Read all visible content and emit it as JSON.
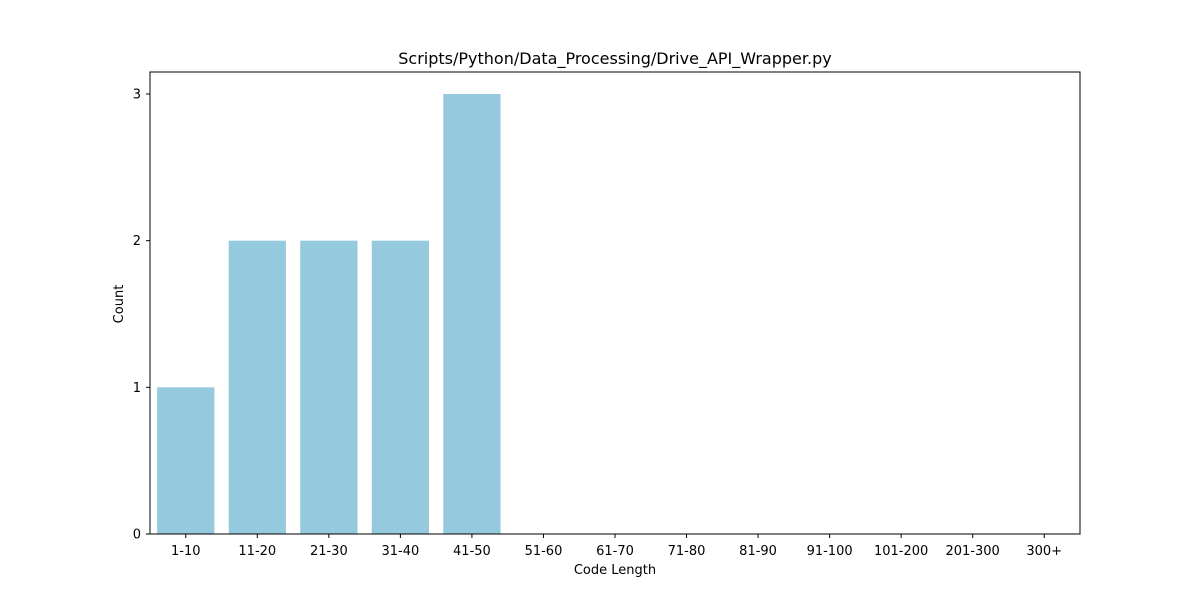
{
  "chart_data": {
    "type": "bar",
    "title": "Scripts/Python/Data_Processing/Drive_API_Wrapper.py",
    "xlabel": "Code Length",
    "ylabel": "Count",
    "categories": [
      "1-10",
      "11-20",
      "21-30",
      "31-40",
      "41-50",
      "51-60",
      "61-70",
      "71-80",
      "81-90",
      "91-100",
      "101-200",
      "201-300",
      "300+"
    ],
    "values": [
      1,
      2,
      2,
      2,
      3,
      0,
      0,
      0,
      0,
      0,
      0,
      0,
      0
    ],
    "ylim": [
      0,
      3.15
    ],
    "yticks": [
      0,
      1,
      2,
      3
    ],
    "grid": false,
    "bar_color": "#95c9de"
  }
}
